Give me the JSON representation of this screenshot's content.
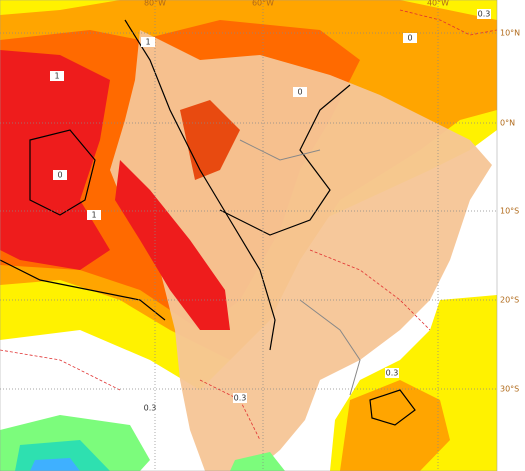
{
  "map": {
    "longitude_labels": [
      "80°W",
      "60°W",
      "40°W"
    ],
    "latitude_labels": [
      "10°N",
      "0°N",
      "10°S",
      "20°S",
      "30°S"
    ],
    "contour_labels": [
      "0.3",
      "0",
      "1",
      "1",
      "0",
      "1",
      "0.3",
      "0.3",
      "0",
      "0.3"
    ]
  }
}
